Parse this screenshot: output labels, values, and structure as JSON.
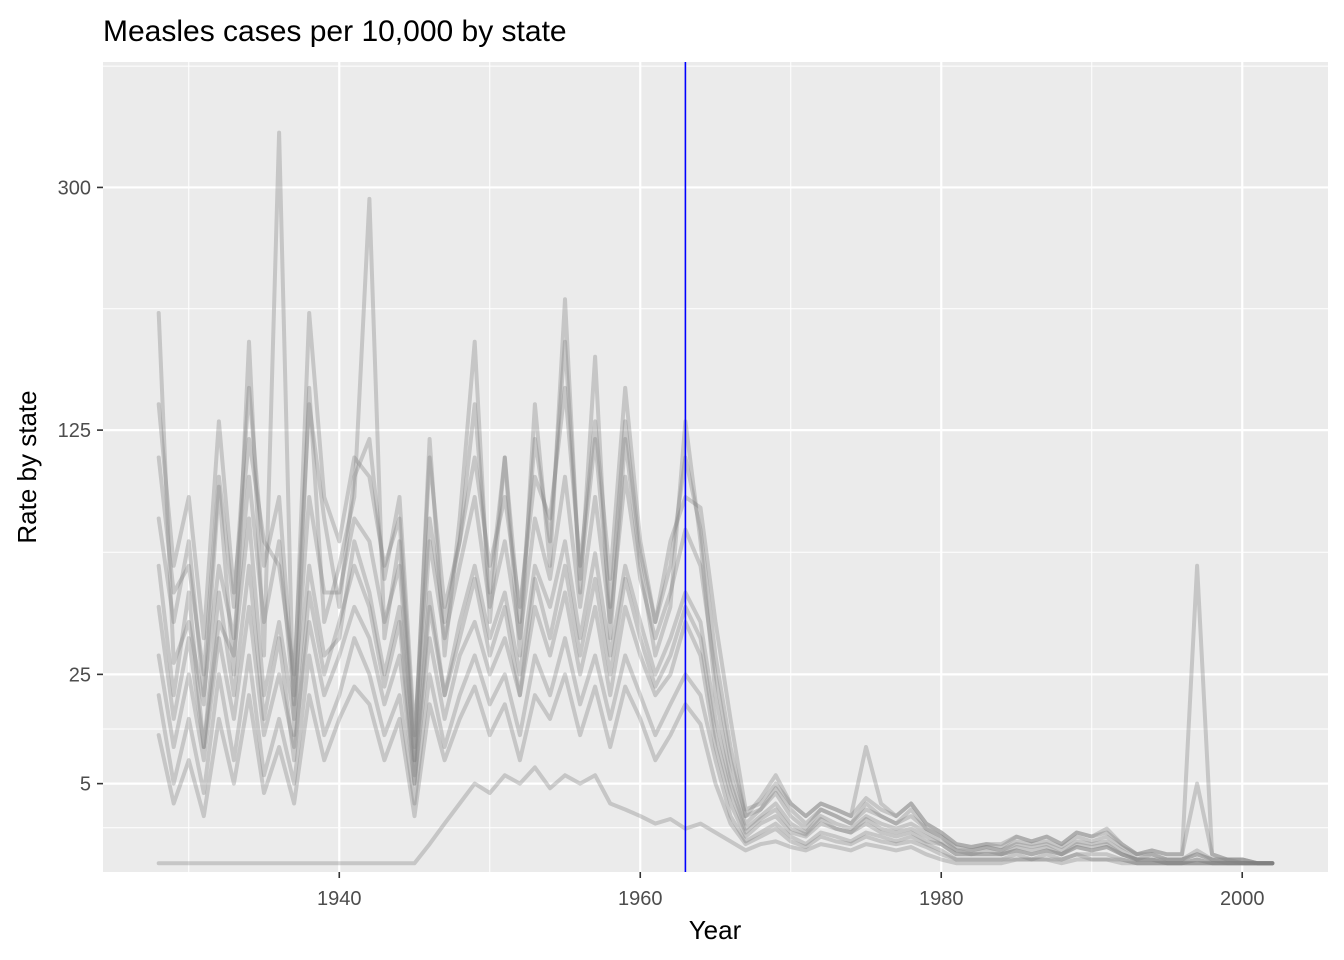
{
  "chart_data": {
    "type": "line",
    "title": "Measles cases per 10,000 by state",
    "xlabel": "Year",
    "ylabel": "Rate by state",
    "y_scale": "sqrt",
    "xlim": [
      1924.3,
      2005.7
    ],
    "ylim": [
      0,
      420
    ],
    "x_ticks": [
      1940,
      1960,
      1980,
      2000
    ],
    "x_tick_labels": [
      "1940",
      "1960",
      "1980",
      "2000"
    ],
    "y_ticks": [
      5,
      25,
      125,
      300
    ],
    "y_tick_labels": [
      "5",
      "25",
      "125",
      "300"
    ],
    "vline": {
      "x": 1963,
      "color": "#0000ff"
    },
    "colors": {
      "panel": "#ebebeb",
      "grid": "#ffffff",
      "series": "#808080",
      "vline": "#0000ff"
    },
    "years": [
      1928,
      1929,
      1930,
      1931,
      1932,
      1933,
      1934,
      1935,
      1936,
      1937,
      1938,
      1939,
      1940,
      1941,
      1942,
      1943,
      1944,
      1945,
      1946,
      1947,
      1948,
      1949,
      1950,
      1951,
      1952,
      1953,
      1954,
      1955,
      1956,
      1957,
      1958,
      1959,
      1960,
      1961,
      1962,
      1963,
      1964,
      1965,
      1966,
      1967,
      1968,
      1969,
      1970,
      1971,
      1972,
      1973,
      1974,
      1975,
      1976,
      1977,
      1978,
      1979,
      1980,
      1981,
      1982,
      1983,
      1984,
      1985,
      1986,
      1987,
      1988,
      1989,
      1990,
      1991,
      1992,
      1993,
      1994,
      1995,
      1996,
      1997,
      1998,
      1999,
      2000,
      2001,
      2002
    ],
    "series": [
      {
        "values": [
          200,
          28,
          40,
          18,
          95,
          25,
          180,
          30,
          350,
          12,
          150,
          40,
          60,
          90,
          290,
          35,
          70,
          8,
          120,
          30,
          80,
          180,
          40,
          110,
          30,
          140,
          60,
          210,
          50,
          170,
          35,
          120,
          60,
          30,
          45,
          130,
          70,
          20,
          6,
          1.5,
          2.5,
          4.0,
          2.0,
          1.2,
          2.5,
          2.0,
          1.5,
          2.5,
          2.0,
          1.5,
          2.0,
          1.2,
          0.8,
          0.3,
          0.3,
          0.4,
          0.3,
          0.5,
          0.4,
          0.5,
          0.3,
          0.6,
          0.5,
          0.6,
          0.3,
          0.1,
          0.2,
          0.1,
          0.1,
          0.2,
          0.1,
          0.1,
          0.05,
          0.05,
          0.05
        ]
      },
      {
        "values": [
          140,
          60,
          90,
          35,
          130,
          50,
          120,
          70,
          60,
          25,
          140,
          80,
          45,
          100,
          120,
          55,
          90,
          12,
          80,
          40,
          70,
          110,
          60,
          90,
          45,
          100,
          80,
          150,
          60,
          130,
          55,
          150,
          70,
          40,
          70,
          90,
          85,
          40,
          15,
          2.5,
          3.0,
          5.0,
          3.0,
          2.0,
          3.0,
          2.5,
          2.0,
          3.5,
          2.5,
          2.0,
          3.0,
          1.5,
          1.0,
          0.5,
          0.4,
          0.5,
          0.4,
          0.8,
          0.6,
          0.8,
          0.5,
          1.0,
          0.8,
          1.2,
          0.5,
          0.2,
          0.3,
          0.2,
          0.2,
          60,
          0.2,
          0.1,
          0.1,
          0.05,
          0.05
        ]
      },
      {
        "values": [
          60,
          20,
          50,
          10,
          40,
          30,
          80,
          20,
          40,
          15,
          60,
          30,
          35,
          70,
          50,
          25,
          45,
          6,
          50,
          20,
          40,
          60,
          35,
          50,
          25,
          60,
          45,
          70,
          35,
          65,
          30,
          60,
          40,
          25,
          35,
          50,
          40,
          15,
          5,
          1.2,
          2.0,
          3.0,
          1.5,
          1.0,
          2.0,
          1.5,
          1.2,
          2.0,
          1.5,
          1.2,
          1.5,
          1.0,
          0.6,
          0.3,
          0.2,
          0.3,
          0.2,
          0.4,
          0.3,
          0.4,
          0.2,
          0.5,
          0.4,
          0.5,
          0.2,
          0.1,
          0.1,
          0.1,
          0.1,
          0.3,
          0.1,
          0.05,
          0.05,
          0.05,
          0.05
        ]
      },
      {
        "values": [
          30,
          10,
          25,
          8,
          35,
          15,
          45,
          12,
          25,
          10,
          40,
          20,
          30,
          45,
          35,
          18,
          30,
          5,
          35,
          15,
          30,
          40,
          25,
          35,
          20,
          45,
          30,
          50,
          25,
          45,
          20,
          45,
          30,
          20,
          25,
          40,
          30,
          10,
          3,
          0.8,
          1.5,
          2.0,
          1.0,
          0.8,
          1.5,
          1.2,
          1.0,
          1.5,
          1.0,
          0.8,
          1.0,
          0.6,
          0.5,
          0.2,
          0.2,
          0.2,
          0.2,
          0.3,
          0.2,
          0.3,
          0.2,
          0.4,
          0.3,
          0.4,
          0.2,
          0.1,
          0.1,
          0.05,
          0.05,
          0.1,
          0.05,
          0.05,
          0.05,
          0.05,
          0.05
        ]
      },
      {
        "values": [
          80,
          40,
          70,
          20,
          60,
          35,
          100,
          40,
          70,
          18,
          90,
          50,
          50,
          80,
          70,
          40,
          60,
          8,
          70,
          35,
          60,
          90,
          45,
          70,
          35,
          80,
          55,
          100,
          45,
          90,
          40,
          100,
          55,
          35,
          50,
          75,
          60,
          25,
          8,
          2.0,
          2.5,
          4.5,
          2.5,
          1.5,
          2.5,
          2.0,
          1.5,
          3.0,
          2.0,
          1.5,
          2.5,
          1.2,
          0.8,
          0.4,
          0.3,
          0.4,
          0.3,
          0.6,
          0.5,
          0.6,
          0.4,
          0.8,
          0.6,
          0.8,
          0.4,
          0.2,
          0.2,
          0.1,
          0.1,
          0.2,
          0.1,
          0.1,
          0.1,
          0.05,
          0.05
        ]
      },
      {
        "values": [
          20,
          5,
          15,
          4,
          25,
          8,
          30,
          6,
          15,
          5,
          30,
          12,
          20,
          35,
          25,
          12,
          20,
          3,
          25,
          10,
          20,
          30,
          18,
          25,
          12,
          30,
          20,
          35,
          18,
          30,
          15,
          30,
          20,
          12,
          18,
          25,
          20,
          8,
          2,
          0.6,
          1.0,
          1.5,
          0.8,
          0.5,
          1.0,
          0.8,
          0.6,
          1.0,
          0.8,
          0.6,
          0.8,
          0.5,
          0.3,
          0.1,
          0.1,
          0.1,
          0.1,
          0.2,
          0.1,
          0.2,
          0.1,
          0.2,
          0.2,
          0.2,
          0.1,
          0.05,
          0.05,
          0.05,
          0.05,
          0.05,
          0.05,
          0.05,
          0.05,
          0.05,
          0.05
        ]
      },
      {
        "values": [
          0.05,
          0.05,
          0.05,
          0.05,
          0.05,
          0.05,
          0.05,
          0.05,
          0.05,
          0.05,
          0.05,
          0.05,
          0.05,
          0.05,
          0.05,
          0.05,
          0.05,
          0.05,
          0.5,
          1.5,
          3.0,
          5.0,
          4.0,
          6.0,
          5.0,
          7.0,
          4.5,
          6.0,
          5.0,
          6.0,
          3.0,
          2.5,
          2.0,
          1.5,
          1.8,
          1.2,
          1.5,
          1.0,
          0.6,
          0.3,
          0.5,
          0.6,
          0.4,
          0.3,
          0.5,
          0.4,
          0.3,
          0.5,
          0.4,
          0.3,
          0.4,
          0.2,
          0.1,
          0.05,
          0.05,
          0.05,
          0.05,
          0.1,
          0.1,
          0.1,
          0.05,
          0.1,
          0.1,
          0.1,
          0.05,
          0.05,
          0.05,
          0.05,
          0.05,
          0.05,
          0.05,
          0.05,
          0.05,
          0.05,
          0.05
        ]
      },
      {
        "values": [
          45,
          15,
          35,
          10,
          50,
          20,
          60,
          15,
          35,
          8,
          50,
          25,
          40,
          60,
          45,
          22,
          40,
          5,
          45,
          20,
          35,
          55,
          30,
          45,
          20,
          55,
          35,
          60,
          30,
          55,
          25,
          55,
          35,
          22,
          30,
          45,
          35,
          12,
          4,
          1.0,
          1.8,
          2.5,
          1.2,
          0.9,
          1.8,
          1.2,
          1.0,
          1.8,
          1.2,
          1.0,
          1.2,
          0.8,
          0.5,
          0.2,
          0.2,
          0.2,
          0.2,
          0.3,
          0.2,
          0.3,
          0.2,
          0.4,
          0.3,
          0.4,
          0.2,
          0.1,
          0.1,
          0.05,
          0.05,
          0.1,
          0.05,
          0.05,
          0.05,
          0.05,
          0.05
        ]
      },
      {
        "values": [
          110,
          50,
          60,
          25,
          100,
          45,
          150,
          60,
          90,
          20,
          200,
          90,
          70,
          110,
          100,
          60,
          80,
          10,
          110,
          45,
          70,
          140,
          50,
          110,
          40,
          120,
          70,
          180,
          55,
          120,
          45,
          130,
          65,
          40,
          60,
          110,
          75,
          30,
          10,
          2.0,
          3.5,
          6.0,
          3.0,
          2.0,
          3.0,
          2.5,
          2.0,
          10,
          3.0,
          2.0,
          3.0,
          1.5,
          1.0,
          0.5,
          0.4,
          0.5,
          0.5,
          0.8,
          0.6,
          0.8,
          0.5,
          1.0,
          0.8,
          1.0,
          0.5,
          0.2,
          0.3,
          0.2,
          0.2,
          5.0,
          0.2,
          0.1,
          0.1,
          0.05,
          0.05
        ]
      },
      {
        "values": [
          12,
          3,
          8,
          2,
          15,
          5,
          20,
          4,
          10,
          3,
          20,
          8,
          15,
          22,
          18,
          8,
          15,
          2,
          18,
          8,
          15,
          22,
          12,
          18,
          8,
          20,
          15,
          25,
          12,
          22,
          10,
          22,
          15,
          8,
          12,
          18,
          14,
          5,
          1.5,
          0.5,
          0.8,
          1.2,
          0.6,
          0.4,
          0.8,
          0.6,
          0.5,
          0.8,
          0.6,
          0.5,
          0.6,
          0.4,
          0.2,
          0.1,
          0.1,
          0.1,
          0.1,
          0.1,
          0.1,
          0.1,
          0.1,
          0.2,
          0.1,
          0.1,
          0.1,
          0.05,
          0.05,
          0.05,
          0.05,
          0.05,
          0.05,
          0.05,
          0.05,
          0.05,
          0.05
        ]
      }
    ]
  }
}
